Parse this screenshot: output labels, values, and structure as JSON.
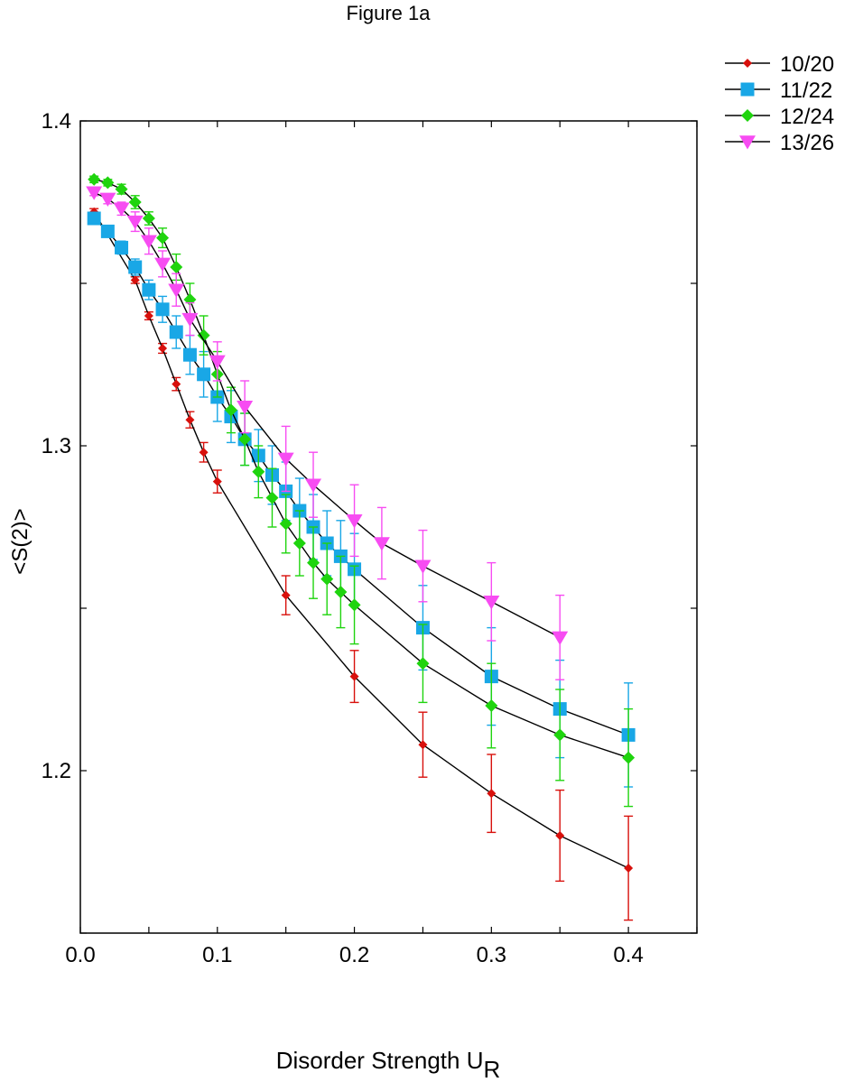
{
  "chart_data": {
    "type": "line",
    "title": "Figure 1a",
    "xlabel": "Disorder Strength U",
    "xlabel_subscript": "R",
    "ylabel": "<S(2)>",
    "xlim": [
      0.0,
      0.45
    ],
    "ylim": [
      1.15,
      1.4
    ],
    "xticks": [
      0.0,
      0.1,
      0.2,
      0.3,
      0.4
    ],
    "xtick_labels": [
      "0.0",
      "0.1",
      "0.2",
      "0.3",
      "0.4"
    ],
    "yticks": [
      1.2,
      1.3,
      1.4
    ],
    "ytick_labels": [
      "1.2",
      "1.3",
      "1.4"
    ],
    "grid": false,
    "legend_position": "top-right, outside plot",
    "series": [
      {
        "name": "10/20",
        "color": "#d8100c",
        "marker": "diamond-small",
        "x": [
          0.01,
          0.04,
          0.05,
          0.06,
          0.07,
          0.08,
          0.09,
          0.1,
          0.15,
          0.2,
          0.25,
          0.3,
          0.35,
          0.4
        ],
        "y": [
          1.372,
          1.351,
          1.34,
          1.33,
          1.319,
          1.308,
          1.298,
          1.289,
          1.254,
          1.229,
          1.208,
          1.193,
          1.18,
          1.17
        ],
        "err": [
          0.001,
          0.001,
          0.0012,
          0.0015,
          0.002,
          0.0025,
          0.003,
          0.0035,
          0.006,
          0.008,
          0.01,
          0.012,
          0.014,
          0.016
        ]
      },
      {
        "name": "11/22",
        "color": "#19a7e6",
        "marker": "square",
        "x": [
          0.01,
          0.02,
          0.03,
          0.04,
          0.05,
          0.06,
          0.07,
          0.08,
          0.09,
          0.1,
          0.11,
          0.12,
          0.13,
          0.14,
          0.15,
          0.16,
          0.17,
          0.18,
          0.19,
          0.2,
          0.25,
          0.3,
          0.35,
          0.4
        ],
        "y": [
          1.37,
          1.366,
          1.361,
          1.355,
          1.348,
          1.342,
          1.335,
          1.328,
          1.322,
          1.315,
          1.309,
          1.302,
          1.297,
          1.291,
          1.286,
          1.28,
          1.275,
          1.27,
          1.266,
          1.262,
          1.244,
          1.229,
          1.219,
          1.211
        ],
        "err": [
          0.001,
          0.0015,
          0.002,
          0.0025,
          0.003,
          0.004,
          0.005,
          0.006,
          0.007,
          0.0075,
          0.008,
          0.008,
          0.008,
          0.009,
          0.009,
          0.01,
          0.01,
          0.01,
          0.011,
          0.011,
          0.013,
          0.015,
          0.015,
          0.016
        ]
      },
      {
        "name": "12/24",
        "color": "#1fd40e",
        "marker": "diamond",
        "x": [
          0.01,
          0.02,
          0.03,
          0.04,
          0.05,
          0.06,
          0.07,
          0.08,
          0.09,
          0.1,
          0.11,
          0.12,
          0.13,
          0.14,
          0.15,
          0.16,
          0.17,
          0.18,
          0.19,
          0.2,
          0.25,
          0.3,
          0.35,
          0.4
        ],
        "y": [
          1.382,
          1.381,
          1.379,
          1.375,
          1.37,
          1.364,
          1.355,
          1.345,
          1.334,
          1.322,
          1.311,
          1.302,
          1.292,
          1.284,
          1.276,
          1.27,
          1.264,
          1.259,
          1.255,
          1.251,
          1.233,
          1.22,
          1.211,
          1.204
        ],
        "err": [
          0.001,
          0.001,
          0.0015,
          0.002,
          0.002,
          0.003,
          0.004,
          0.005,
          0.006,
          0.007,
          0.007,
          0.008,
          0.008,
          0.009,
          0.009,
          0.01,
          0.011,
          0.011,
          0.011,
          0.012,
          0.012,
          0.013,
          0.014,
          0.015
        ]
      },
      {
        "name": "13/26",
        "color": "#f74cf2",
        "marker": "triangle-down",
        "x": [
          0.01,
          0.02,
          0.03,
          0.04,
          0.05,
          0.06,
          0.07,
          0.08,
          0.1,
          0.12,
          0.15,
          0.17,
          0.2,
          0.22,
          0.25,
          0.3,
          0.35
        ],
        "y": [
          1.378,
          1.376,
          1.373,
          1.369,
          1.363,
          1.356,
          1.348,
          1.339,
          1.326,
          1.312,
          1.296,
          1.288,
          1.277,
          1.27,
          1.263,
          1.252,
          1.241
        ],
        "err": [
          0.001,
          0.0015,
          0.002,
          0.003,
          0.004,
          0.004,
          0.005,
          0.005,
          0.006,
          0.008,
          0.01,
          0.01,
          0.011,
          0.011,
          0.011,
          0.012,
          0.013
        ]
      }
    ]
  }
}
